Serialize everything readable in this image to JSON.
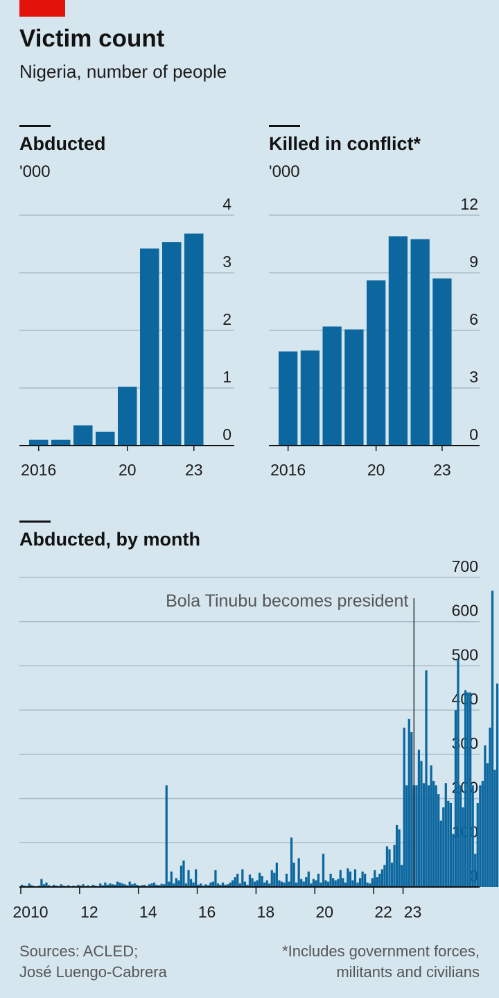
{
  "header": {
    "title": "Victim count",
    "subtitle": "Nigeria, number of people"
  },
  "footer": {
    "source": "Sources: ACLED;\nJosé Luengo-Cabrera",
    "note": "*Includes government forces,\nmilitants and civilians"
  },
  "colors": {
    "bar": "#0b679e",
    "grid": "#a9bcc8",
    "background": "#d6e6ef",
    "accent": "#e3120b"
  },
  "chart_data": [
    {
      "type": "bar",
      "title": "Abducted",
      "unit": "'000",
      "categories": [
        "2016",
        "2017",
        "2018",
        "2019",
        "2020",
        "2021",
        "2022",
        "2023"
      ],
      "x_tick_labels": [
        {
          "at": "2016",
          "label": "2016"
        },
        {
          "at": "2020",
          "label": "20"
        },
        {
          "at": "2023",
          "label": "23"
        }
      ],
      "values": [
        0.1,
        0.1,
        0.35,
        0.24,
        1.02,
        3.42,
        3.53,
        3.68
      ],
      "ylim": [
        0,
        4
      ],
      "yticks": [
        "0",
        "1",
        "2",
        "3",
        "4"
      ],
      "grid": true,
      "y_axis_side": "right"
    },
    {
      "type": "bar",
      "title": "Killed in conflict*",
      "unit": "'000",
      "categories": [
        "2016",
        "2017",
        "2018",
        "2019",
        "2020",
        "2021",
        "2022",
        "2023"
      ],
      "x_tick_labels": [
        {
          "at": "2016",
          "label": "2016"
        },
        {
          "at": "2020",
          "label": "20"
        },
        {
          "at": "2023",
          "label": "23"
        }
      ],
      "values": [
        4.9,
        4.95,
        6.2,
        6.05,
        8.6,
        10.9,
        10.75,
        8.7
      ],
      "ylim": [
        0,
        12
      ],
      "yticks": [
        "0",
        "3",
        "6",
        "9",
        "12"
      ],
      "grid": true,
      "y_axis_side": "right"
    },
    {
      "type": "bar",
      "title": "Abducted, by month",
      "x_start": "2010-01",
      "x_end": "2023-12",
      "x_tick_labels": [
        {
          "at": "2010-01",
          "label": "2010"
        },
        {
          "at": "2012-01",
          "label": "12"
        },
        {
          "at": "2014-01",
          "label": "14"
        },
        {
          "at": "2016-01",
          "label": "16"
        },
        {
          "at": "2018-01",
          "label": "18"
        },
        {
          "at": "2020-01",
          "label": "20"
        },
        {
          "at": "2022-01",
          "label": "22"
        },
        {
          "at": "2023-01",
          "label": "23"
        }
      ],
      "ylim": [
        0,
        700
      ],
      "yticks": [
        "0",
        "100",
        "200",
        "300",
        "400",
        "500",
        "600",
        "700"
      ],
      "grid": true,
      "y_axis_side": "right",
      "annotation": {
        "label": "Bola Tinubu becomes president",
        "at": "2023-05"
      },
      "values": [
        5,
        3,
        2,
        8,
        4,
        2,
        1,
        3,
        18,
        6,
        10,
        4,
        2,
        5,
        3,
        2,
        6,
        3,
        2,
        4,
        1,
        3,
        2,
        5,
        3,
        6,
        2,
        4,
        1,
        5,
        3,
        2,
        8,
        4,
        10,
        5,
        8,
        6,
        5,
        12,
        10,
        8,
        6,
        4,
        12,
        6,
        8,
        5,
        3,
        4,
        5,
        2,
        6,
        8,
        10,
        5,
        4,
        7,
        6,
        230,
        12,
        35,
        8,
        20,
        15,
        48,
        60,
        8,
        38,
        18,
        10,
        40,
        5,
        8,
        3,
        6,
        4,
        10,
        12,
        38,
        8,
        5,
        10,
        5,
        6,
        10,
        15,
        22,
        30,
        8,
        40,
        12,
        5,
        28,
        20,
        12,
        15,
        32,
        25,
        10,
        15,
        8,
        38,
        32,
        55,
        15,
        12,
        10,
        30,
        12,
        112,
        55,
        10,
        65,
        18,
        12,
        22,
        35,
        8,
        18,
        15,
        30,
        10,
        75,
        15,
        12,
        30,
        20,
        15,
        18,
        38,
        20,
        10,
        42,
        35,
        15,
        40,
        10,
        20,
        35,
        30,
        10,
        8,
        20,
        38,
        22,
        30,
        40,
        50,
        92,
        85,
        55,
        95,
        140,
        130,
        50,
        360,
        230,
        380,
        350,
        230,
        230,
        310,
        285,
        235,
        490,
        230,
        275,
        240,
        230,
        210,
        150,
        180,
        235,
        195,
        190,
        120,
        400,
        515,
        230,
        180,
        445,
        440,
        440,
        230,
        75,
        190,
        230,
        240,
        320,
        280,
        360,
        670,
        265,
        460
      ]
    }
  ]
}
